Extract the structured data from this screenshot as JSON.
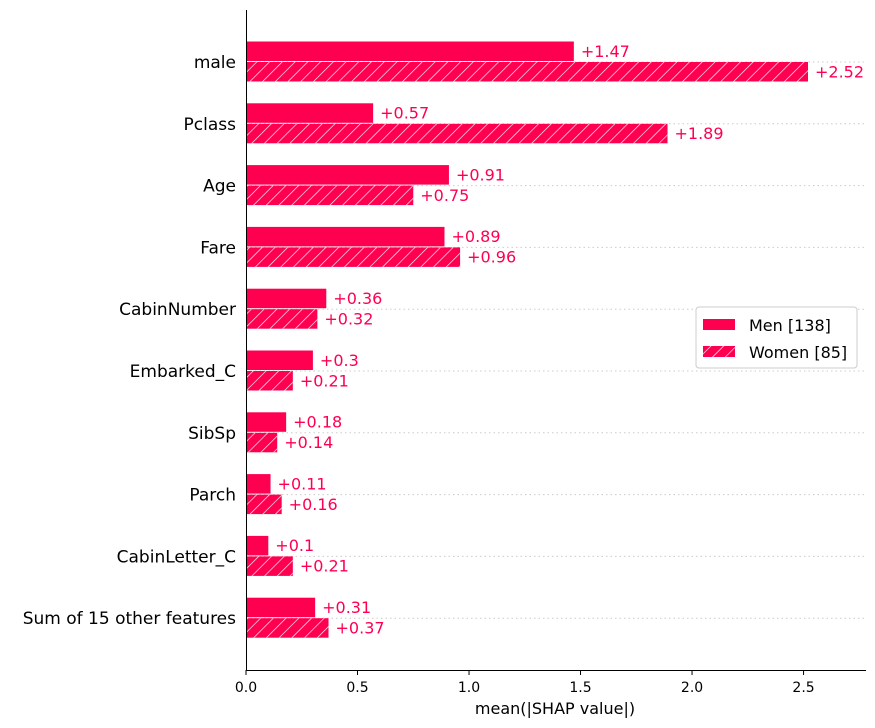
{
  "chart_data": {
    "type": "bar",
    "orientation": "horizontal",
    "title": "",
    "xlabel": "mean(|SHAP value|)",
    "ylabel": "",
    "xlim": [
      0,
      2.78
    ],
    "xticks": [
      "0.0",
      "0.5",
      "1.0",
      "1.5",
      "2.0",
      "2.5"
    ],
    "categories": [
      "male",
      "Pclass",
      "Age",
      "Fare",
      "CabinNumber",
      "Embarked_C",
      "SibSp",
      "Parch",
      "CabinLetter_C",
      "Sum of 15 other features"
    ],
    "series": [
      {
        "name": "Men [138]",
        "hatch": false,
        "values": [
          1.47,
          0.57,
          0.91,
          0.89,
          0.36,
          0.3,
          0.18,
          0.11,
          0.1,
          0.31
        ],
        "labels": [
          "+1.47",
          "+0.57",
          "+0.91",
          "+0.89",
          "+0.36",
          "+0.3",
          "+0.18",
          "+0.11",
          "+0.1",
          "+0.31"
        ]
      },
      {
        "name": "Women [85]",
        "hatch": true,
        "values": [
          2.52,
          1.89,
          0.75,
          0.96,
          0.32,
          0.21,
          0.14,
          0.16,
          0.21,
          0.37
        ],
        "labels": [
          "+2.52",
          "+1.89",
          "+0.75",
          "+0.96",
          "+0.32",
          "+0.21",
          "+0.14",
          "+0.16",
          "+0.21",
          "+0.37"
        ]
      }
    ],
    "legend_position": "center-right",
    "grid": "dotted horizontal lines per feature row",
    "colors": {
      "bar": "#ff0051",
      "label": "#ff0051",
      "hatch": "#ffffff",
      "axis": "#000000",
      "grid": "#cccccc"
    }
  }
}
